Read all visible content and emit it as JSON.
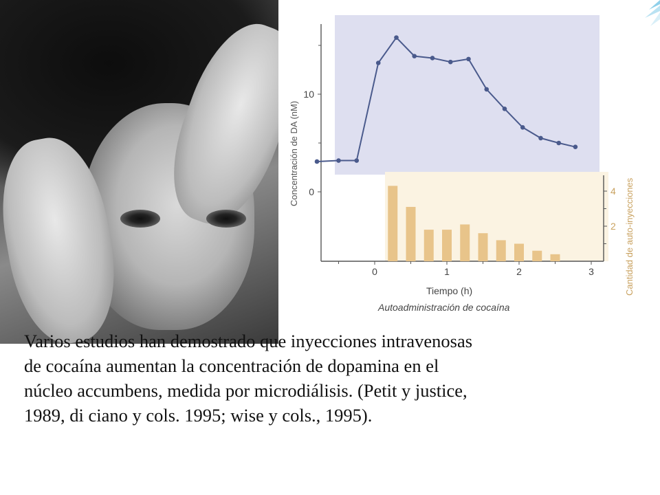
{
  "caption": {
    "lines": [
      "Varios estudios han demostrado que inyecciones intravenosas",
      "de cocaína  aumentan la concentración de dopamina en el",
      "núcleo accumbens, medida por microdiálisis. (Petit y justice,",
      "1989, di ciano y cols. 1995; wise y cols., 1995)."
    ]
  },
  "chart_data": {
    "type": "line",
    "title": "Autoadministración de cocaína",
    "xlabel": "Tiempo (h)",
    "ylabel": "Concentración de DA (nM)",
    "y2label": "Cantidad de auto-inyecciones",
    "xlim": [
      -1.0,
      3.2
    ],
    "x_ticks": [
      "0",
      "1",
      "2",
      "3"
    ],
    "y_ticks": [
      "0",
      "10"
    ],
    "y2_ticks": [
      "2",
      "4"
    ],
    "series": [
      {
        "type": "line",
        "color": "#4a5a8c",
        "x": [
          -0.8,
          -0.5,
          -0.25,
          0.05,
          0.3,
          0.55,
          0.8,
          1.05,
          1.3,
          1.55,
          1.8,
          2.05,
          2.3,
          2.55,
          2.78
        ],
        "values": [
          3.1,
          3.2,
          3.2,
          13.2,
          15.8,
          13.9,
          13.7,
          13.3,
          13.6,
          10.5,
          8.5,
          6.6,
          5.5,
          5.0,
          4.6
        ]
      },
      {
        "type": "bar",
        "color": "#e8c48a",
        "x": [
          0.25,
          0.5,
          0.75,
          1.0,
          1.25,
          1.5,
          1.75,
          2.0,
          2.25,
          2.5
        ],
        "values": [
          4.3,
          3.1,
          1.8,
          1.8,
          2.1,
          1.6,
          1.2,
          1.0,
          0.6,
          0.4
        ]
      }
    ],
    "ylim": [
      0,
      17
    ],
    "y2lim": [
      0,
      5
    ]
  }
}
